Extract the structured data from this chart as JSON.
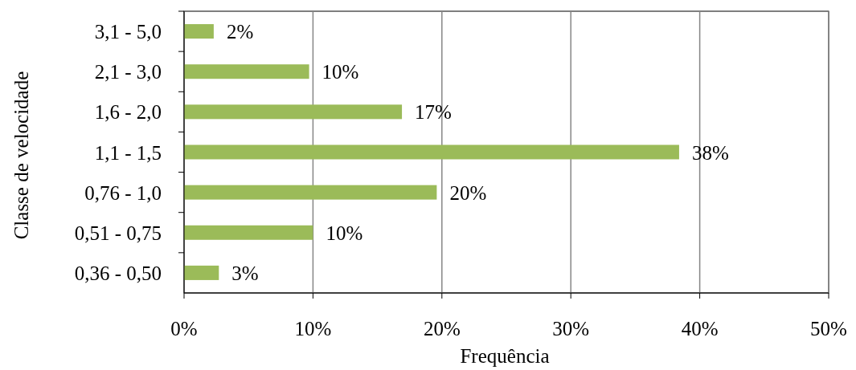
{
  "chart_data": {
    "type": "bar",
    "orientation": "horizontal",
    "xlabel": "Frequência",
    "ylabel": "Classe de velocidade",
    "categories": [
      "3,1 - 5,0",
      "2,1 - 3,0",
      "1,6 - 2,0",
      "1,1 - 1,5",
      "0,76 - 1,0",
      "0,51 - 0,75",
      "0,36 - 0,50"
    ],
    "values": [
      2.3,
      9.7,
      16.9,
      38.4,
      19.6,
      10.0,
      2.7
    ],
    "value_labels": [
      "2%",
      "10%",
      "17%",
      "38%",
      "20%",
      "10%",
      "3%"
    ],
    "color": "#9bbb59",
    "xlim": [
      0,
      50
    ],
    "xticks": [
      {
        "value": 0,
        "label": "0%"
      },
      {
        "value": 10,
        "label": "10%"
      },
      {
        "value": 20,
        "label": "20%"
      },
      {
        "value": 30,
        "label": "30%"
      },
      {
        "value": 40,
        "label": "40%"
      },
      {
        "value": 50,
        "label": "50%"
      }
    ],
    "grid": "x"
  }
}
